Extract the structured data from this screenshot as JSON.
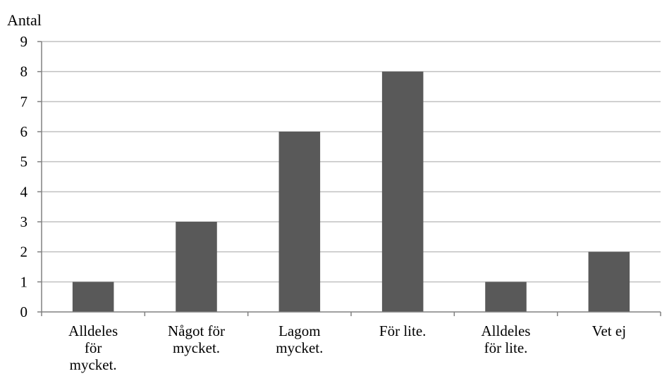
{
  "chart_data": {
    "type": "bar",
    "title": "",
    "xlabel": "",
    "ylabel": "Antal",
    "ylim": [
      0,
      9
    ],
    "yticks": [
      0,
      1,
      2,
      3,
      4,
      5,
      6,
      7,
      8,
      9
    ],
    "grid": true,
    "legend": "none",
    "categories": [
      "Alldeles för mycket.",
      "Något för mycket.",
      "Lagom mycket.",
      "För lite.",
      "Alldeles för lite.",
      "Vet ej"
    ],
    "category_lines": [
      [
        "Alldeles",
        "för",
        "mycket."
      ],
      [
        "Något för",
        "mycket."
      ],
      [
        "Lagom",
        "mycket."
      ],
      [
        "För lite."
      ],
      [
        "Alldeles",
        "för lite."
      ],
      [
        "Vet ej"
      ]
    ],
    "values": [
      1,
      3,
      6,
      8,
      1,
      2
    ],
    "colors": {
      "bar": "#595959",
      "grid": "#c0c0c0",
      "axis": "#808080"
    }
  }
}
